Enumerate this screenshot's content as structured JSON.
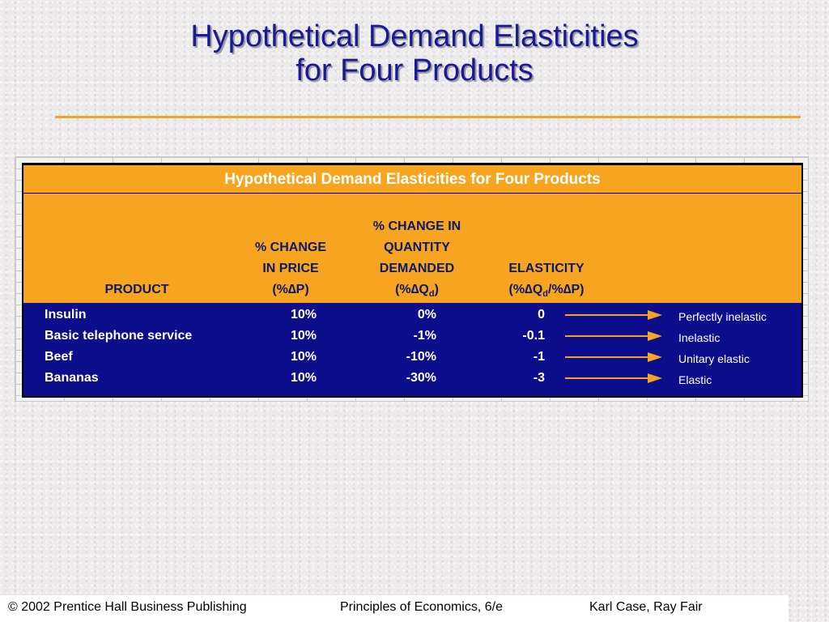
{
  "slide": {
    "title_line1": "Hypothetical Demand Elasticities",
    "title_line2": "for Four Products"
  },
  "table": {
    "title": "Hypothetical Demand Elasticities for Four Products",
    "headers": {
      "product": "PRODUCT",
      "price": [
        "% CHANGE",
        "IN PRICE",
        "(%∆P)"
      ],
      "quantity": [
        "% CHANGE IN",
        "QUANTITY",
        "DEMANDED"
      ],
      "quantity_symbol": {
        "open": "(%∆Q",
        "sub": "d",
        "close": ")"
      },
      "elasticity": [
        "ELASTICITY"
      ],
      "elasticity_symbol": {
        "open": "(%∆Q",
        "sub": "d",
        "rest": "/%∆P)"
      }
    },
    "rows": [
      {
        "product": "Insulin",
        "price": "10%",
        "quantity": "0%",
        "elasticity": "0",
        "description": "Perfectly inelastic"
      },
      {
        "product": "Basic telephone service",
        "price": "10%",
        "quantity": "-1%",
        "elasticity": "-0.1",
        "description": "Inelastic"
      },
      {
        "product": "Beef",
        "price": "10%",
        "quantity": "-10%",
        "elasticity": "-1",
        "description": "Unitary elastic"
      },
      {
        "product": "Bananas",
        "price": "10%",
        "quantity": "-30%",
        "elasticity": "-3",
        "description": "Elastic"
      }
    ],
    "arrow_icon": "right-arrow-icon"
  },
  "colors": {
    "title": "#1a1a99",
    "accent_orange": "#f7a521",
    "table_body": "#0c0e8c"
  },
  "footer": {
    "copyright": "© 2002 Prentice Hall Business Publishing",
    "book": "Principles of Economics, 6/e",
    "authors": "Karl Case, Ray Fair"
  }
}
